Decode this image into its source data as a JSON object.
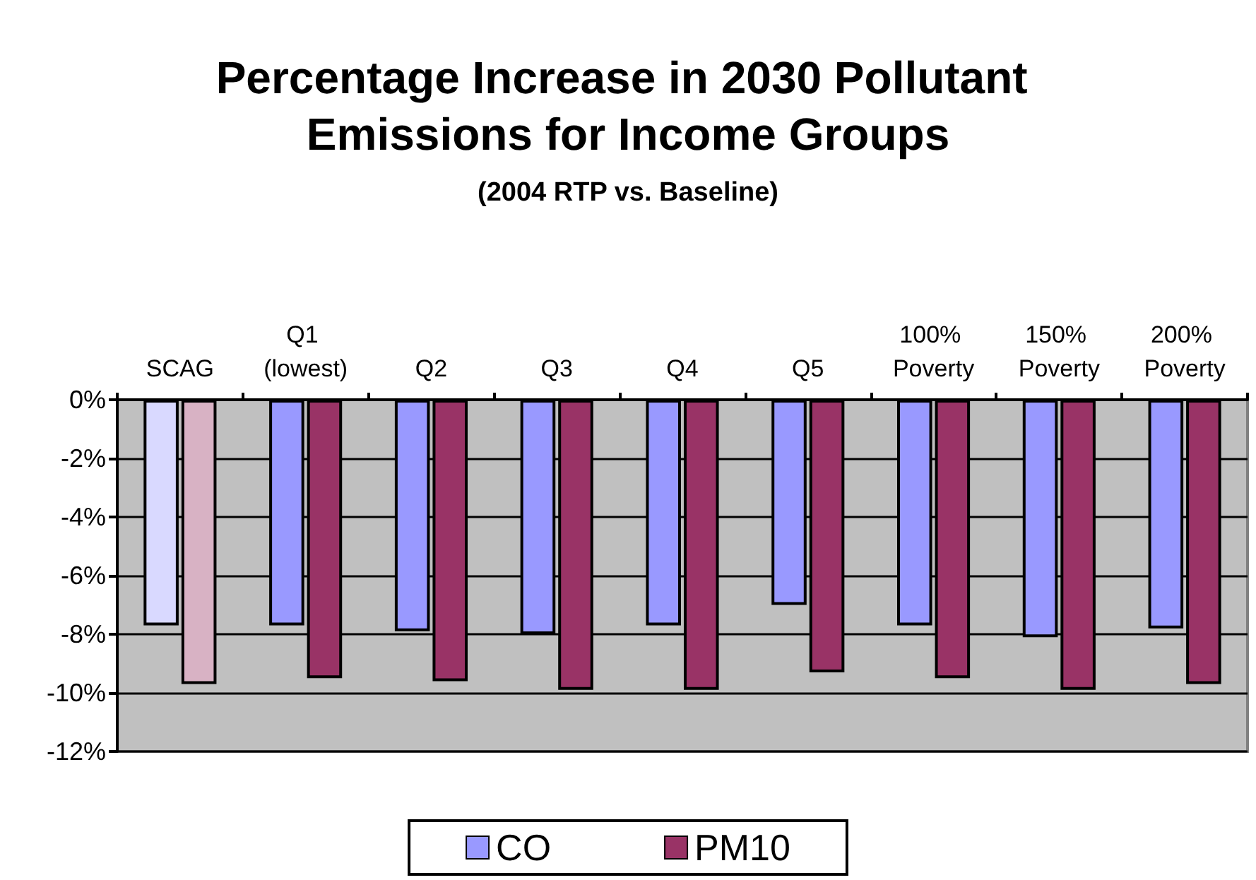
{
  "chart_data": {
    "type": "bar",
    "title": "Percentage Increase in 2030 Pollutant Emissions for Income Groups",
    "subtitle": "(2004 RTP vs. Baseline)",
    "categories": [
      "SCAG",
      "Q1 (lowest)",
      "Q2",
      "Q3",
      "Q4",
      "Q5",
      "100% Poverty",
      "150% Poverty",
      "200% Poverty"
    ],
    "series": [
      {
        "name": "CO",
        "color": "#9999ff",
        "colors": [
          "#d9d9ff",
          "#9999ff",
          "#9999ff",
          "#9999ff",
          "#9999ff",
          "#9999ff",
          "#9999ff",
          "#9999ff",
          "#9999ff"
        ],
        "values": [
          -7.7,
          -7.7,
          -7.9,
          -8.0,
          -7.7,
          -7.0,
          -7.7,
          -8.1,
          -7.8
        ]
      },
      {
        "name": "PM10",
        "color": "#993366",
        "colors": [
          "#d8b2c4",
          "#993366",
          "#993366",
          "#993366",
          "#993366",
          "#993366",
          "#993366",
          "#993366",
          "#993366"
        ],
        "values": [
          -9.7,
          -9.5,
          -9.6,
          -9.9,
          -9.9,
          -9.3,
          -9.5,
          -9.9,
          -9.7
        ]
      }
    ],
    "ylim": [
      -12,
      0
    ],
    "yticks": [
      {
        "value": 0,
        "label": "0%"
      },
      {
        "value": -2,
        "label": "-2%"
      },
      {
        "value": -4,
        "label": "-4%"
      },
      {
        "value": -6,
        "label": "-6%"
      },
      {
        "value": -8,
        "label": "-8%"
      },
      {
        "value": -10,
        "label": "-10%"
      },
      {
        "value": -12,
        "label": "-12%"
      }
    ],
    "grid": "y",
    "legend": "bottom"
  }
}
